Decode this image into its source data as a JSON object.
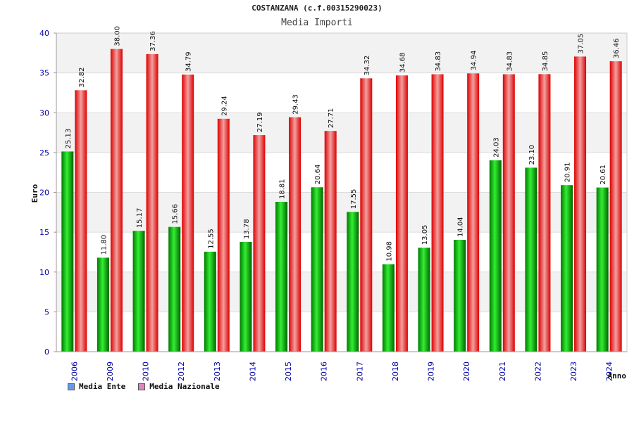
{
  "chart_data": {
    "type": "bar",
    "title": "COSTANZANA (c.f.00315290023)",
    "subtitle": "Media Importi",
    "ylabel": "Euro",
    "xlabel": "Anno",
    "ylim": [
      0,
      40
    ],
    "yticks": [
      0,
      5,
      10,
      15,
      20,
      25,
      30,
      35,
      40
    ],
    "grid": true,
    "legend_position": "bottom-left",
    "categories": [
      "2006",
      "2009",
      "2010",
      "2012",
      "2013",
      "2014",
      "2015",
      "2016",
      "2017",
      "2018",
      "2019",
      "2020",
      "2021",
      "2022",
      "2023",
      "2024"
    ],
    "series": [
      {
        "name": "Media Ente",
        "color": "#00cc00",
        "legend_color": "#6699ee",
        "values": [
          25.13,
          11.8,
          15.17,
          15.66,
          12.55,
          13.78,
          18.81,
          20.64,
          17.55,
          10.98,
          13.05,
          14.04,
          24.03,
          23.1,
          20.91,
          20.61
        ],
        "labels": [
          "25.13",
          "11.80",
          "15.17",
          "15.66",
          "12.55",
          "13.78",
          "18.81",
          "20.64",
          "17.55",
          "10.98",
          "13.05",
          "14.04",
          "24.03",
          "23.10",
          "20.91",
          "20.61"
        ]
      },
      {
        "name": "Media Nazionale",
        "color": "#ee0000",
        "legend_color": "#dd88bb",
        "values": [
          32.82,
          38.0,
          37.36,
          34.79,
          29.24,
          27.19,
          29.43,
          27.71,
          34.32,
          34.68,
          34.83,
          34.94,
          34.83,
          34.85,
          37.05,
          36.46
        ],
        "labels": [
          "32.82",
          "38.00",
          "37.36",
          "34.79",
          "29.24",
          "27.19",
          "29.43",
          "27.71",
          "34.32",
          "34.68",
          "34.83",
          "34.94",
          "34.83",
          "34.85",
          "37.05",
          "36.46"
        ]
      }
    ]
  }
}
